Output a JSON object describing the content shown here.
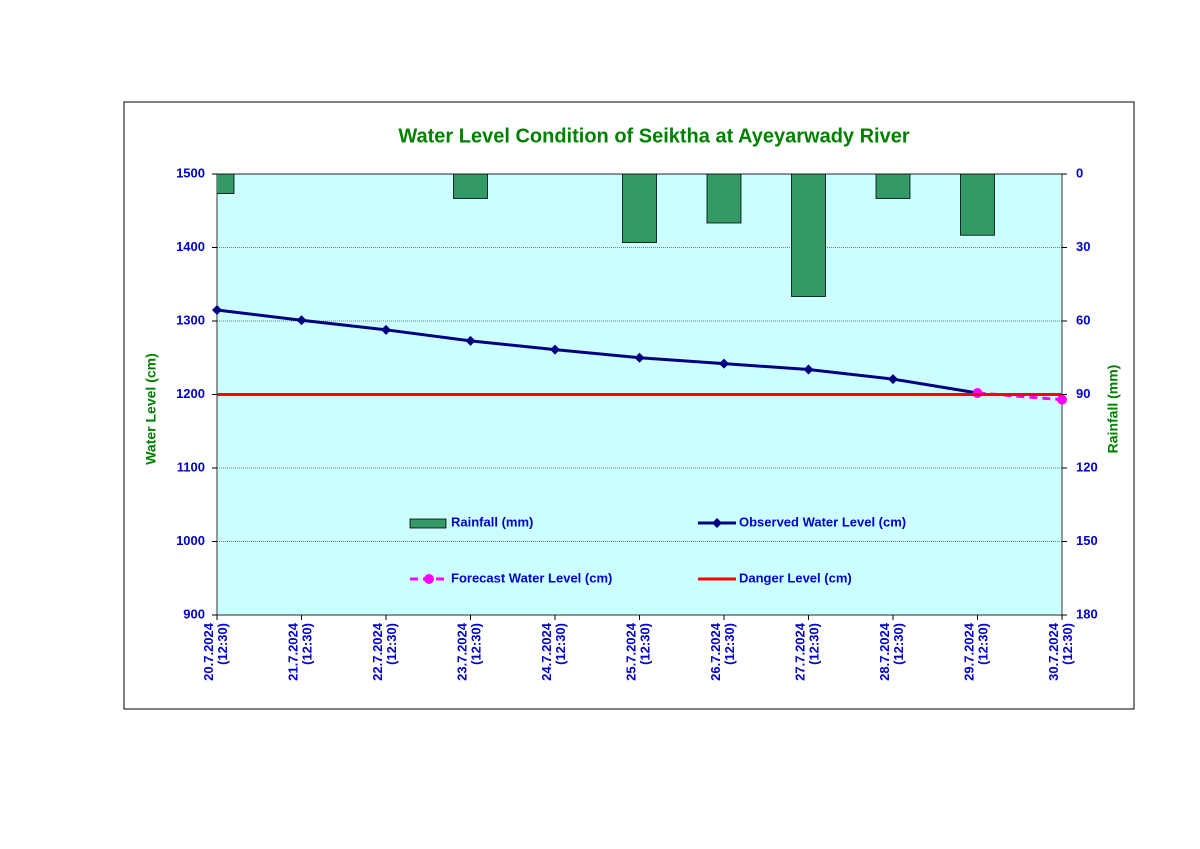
{
  "chart_data": {
    "type": "line",
    "title": "Water Level Condition of Seiktha at Ayeyarwady River",
    "y_label": "Water Level (cm)",
    "y2_label": "Rainfall (mm)",
    "categories": [
      "20.7.2024 (12:30)",
      "21.7.2024 (12:30)",
      "22.7.2024 (12:30)",
      "23.7.2024 (12:30)",
      "24.7.2024 (12:30)",
      "25.7.2024 (12:30)",
      "26.7.2024 (12:30)",
      "27.7.2024 (12:30)",
      "28.7.2024 (12:30)",
      "29.7.2024 (12:30)",
      "30.7.2024 (12:30)"
    ],
    "ylim": [
      900,
      1500
    ],
    "yticks": [
      900,
      1000,
      1100,
      1200,
      1300,
      1400,
      1500
    ],
    "y2lim": [
      180,
      0
    ],
    "y2ticks": [
      0,
      30,
      60,
      90,
      120,
      150,
      180
    ],
    "grid": true,
    "series": [
      {
        "name": "Rainfall (mm)",
        "type": "bar",
        "axis": "y2",
        "color": "#339966",
        "values": [
          8,
          0,
          0,
          10,
          0,
          28,
          20,
          50,
          10,
          25,
          0
        ]
      },
      {
        "name": "Observed Water Level (cm)",
        "type": "line",
        "color": "#000080",
        "marker": "diamond",
        "values": [
          1315,
          1301,
          1288,
          1273,
          1261,
          1250,
          1242,
          1234,
          1221,
          1202,
          null
        ]
      },
      {
        "name": "Forecast Water Level (cm)",
        "type": "line",
        "color": "#ff00ff",
        "marker": "circle",
        "dashed": true,
        "values": [
          null,
          null,
          null,
          null,
          null,
          null,
          null,
          null,
          null,
          1202,
          1193
        ]
      },
      {
        "name": "Danger Level (cm)",
        "type": "line",
        "color": "#ff0000",
        "values": [
          1200,
          1200,
          1200,
          1200,
          1200,
          1200,
          1200,
          1200,
          1200,
          1200,
          1200
        ]
      }
    ]
  }
}
